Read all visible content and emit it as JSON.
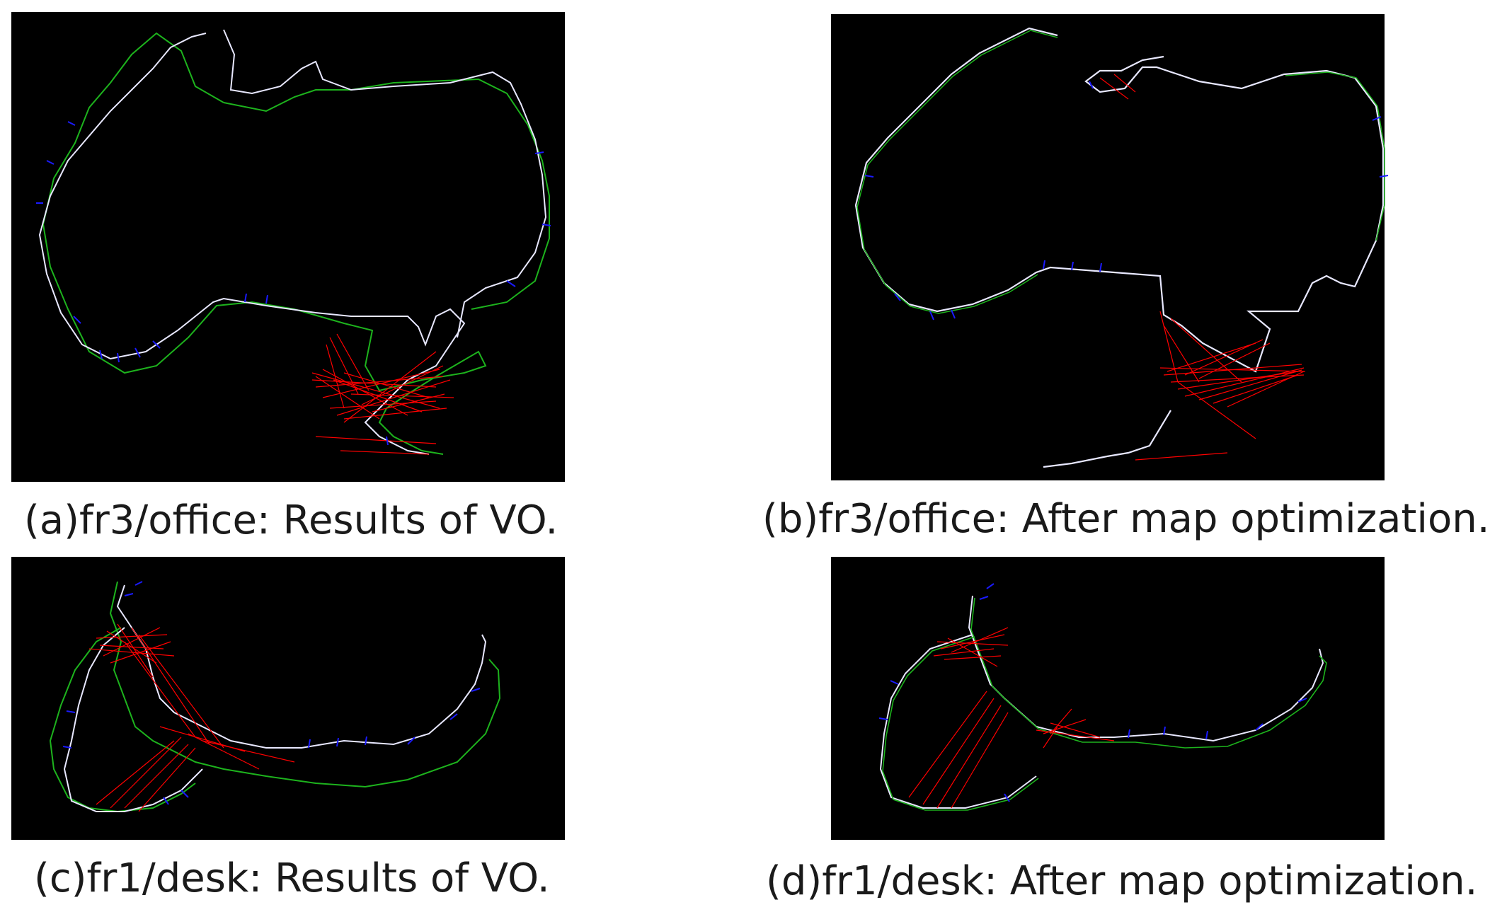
{
  "figure": {
    "panels": [
      {
        "id": "a",
        "caption": "(a)fr3/office: Results of VO."
      },
      {
        "id": "b",
        "caption": "(b)fr3/office: After map optimization."
      },
      {
        "id": "c",
        "caption": "(c)fr1/desk: Results of VO."
      },
      {
        "id": "d",
        "caption": "(d)fr1/desk: After map optimization."
      }
    ]
  },
  "colors": {
    "background": "#000000",
    "ground_truth": "#1db31d",
    "estimated": "#e8e8ff",
    "constraints": "#ff0000",
    "camera_poses": "#1a1aff"
  }
}
